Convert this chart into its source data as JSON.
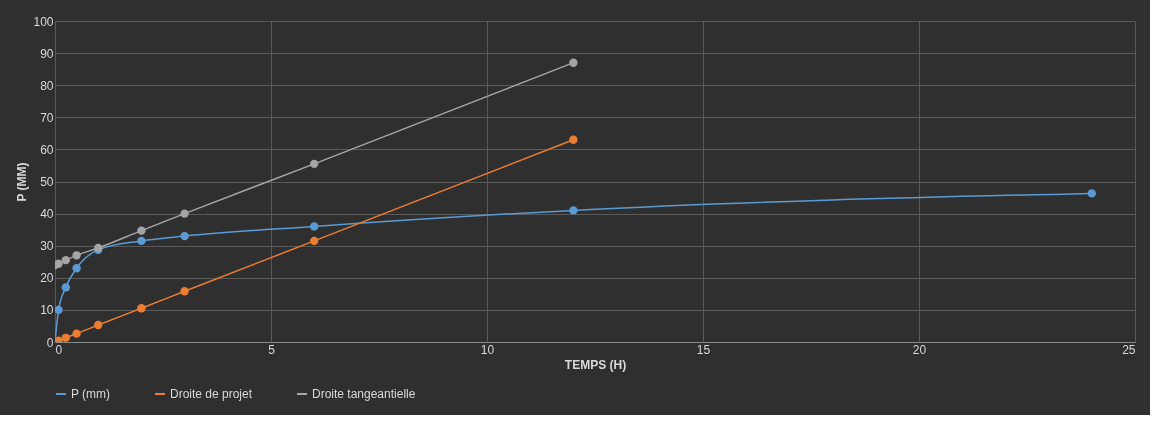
{
  "chart_data": {
    "type": "line",
    "xlabel": "TEMPS (H)",
    "ylabel": "P (MM)",
    "x": [
      0,
      0.083,
      0.25,
      0.5,
      1,
      2,
      3,
      6,
      12,
      24
    ],
    "series": [
      {
        "name": "P (mm)",
        "color": "#5b9bd5",
        "values": [
          0,
          10,
          17,
          23,
          28.7,
          31.5,
          33,
          36,
          41,
          46.3
        ]
      },
      {
        "name": "Droite de projet",
        "color": "#ed7d31",
        "x": [
          0,
          0.083,
          0.25,
          0.5,
          1,
          2,
          3,
          6,
          12
        ],
        "values": [
          0,
          0.4,
          1.3,
          2.6,
          5.3,
          10.5,
          15.8,
          31.5,
          63
        ]
      },
      {
        "name": "Droite tangeantielle",
        "color": "#a5a5a5",
        "x": [
          0,
          0.083,
          0.25,
          0.5,
          1,
          2,
          3,
          6,
          12
        ],
        "values": [
          24,
          24.4,
          25.5,
          27,
          29.3,
          34.7,
          40,
          55.5,
          87
        ]
      }
    ],
    "xlim": [
      0,
      25
    ],
    "xticks": [
      0,
      5,
      10,
      15,
      20,
      25
    ],
    "ylim": [
      0,
      100
    ],
    "yticks": [
      0,
      10,
      20,
      30,
      40,
      50,
      60,
      70,
      80,
      90,
      100
    ],
    "grid": true,
    "legend": "bottom",
    "marker": "circle",
    "line_style": "solid"
  }
}
